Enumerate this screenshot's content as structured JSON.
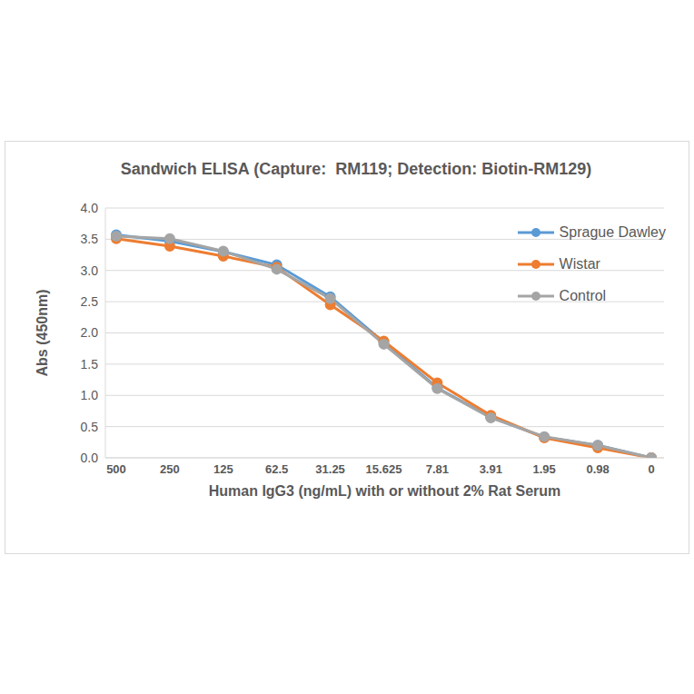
{
  "chart_data": {
    "type": "line",
    "title": "Sandwich ELISA (Capture:  RM119; Detection: Biotin-RM129)",
    "x_label": "Human IgG3 (ng/mL) with or without 2% Rat Serum",
    "y_label": "Abs (450nm)",
    "categories": [
      "500",
      "250",
      "125",
      "62.5",
      "31.25",
      "15.625",
      "7.81",
      "3.91",
      "1.95",
      "0.98",
      "0"
    ],
    "series": [
      {
        "name": "Sprague Dawley",
        "color": "#5b9bd5",
        "values": [
          3.57,
          3.47,
          3.3,
          3.09,
          2.58,
          1.85,
          1.12,
          0.65,
          0.33,
          0.2,
          0.0
        ]
      },
      {
        "name": "Wistar",
        "color": "#ed7d31",
        "values": [
          3.51,
          3.39,
          3.23,
          3.05,
          2.45,
          1.87,
          1.2,
          0.68,
          0.32,
          0.16,
          0.0
        ]
      },
      {
        "name": "Control",
        "color": "#a5a5a5",
        "values": [
          3.55,
          3.51,
          3.31,
          3.02,
          2.55,
          1.82,
          1.11,
          0.64,
          0.34,
          0.2,
          0.0
        ]
      }
    ],
    "ylim": [
      0,
      4
    ],
    "yticks": [
      {
        "value": 0,
        "label": "0.0"
      },
      {
        "value": 0.5,
        "label": "0.5"
      },
      {
        "value": 1,
        "label": "1.0"
      },
      {
        "value": 1.5,
        "label": "1.5"
      },
      {
        "value": 2,
        "label": "2.0"
      },
      {
        "value": 2.5,
        "label": "2.5"
      },
      {
        "value": 3,
        "label": "3.0"
      },
      {
        "value": 3.5,
        "label": "3.5"
      },
      {
        "value": 4,
        "label": "4.0"
      }
    ],
    "grid": true,
    "legend": "upper right",
    "marker": "circle"
  }
}
